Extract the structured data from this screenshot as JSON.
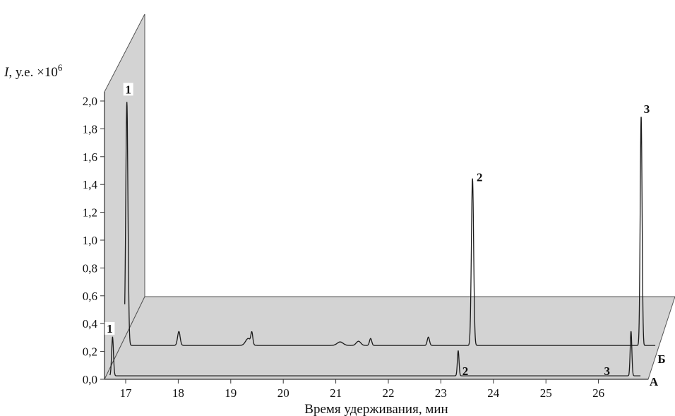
{
  "chart_data": {
    "type": "line",
    "style": "3d-waterfall",
    "ylabel": {
      "var": "I",
      "rest": ", у.е. ×10",
      "exp": "6"
    },
    "xlabel": "Время удерживания, мин",
    "xlim": [
      16.7,
      26.8
    ],
    "ylim": [
      0,
      2.0
    ],
    "x_ticks": [
      "17",
      "18",
      "19",
      "20",
      "21",
      "22",
      "23",
      "24",
      "25",
      "26"
    ],
    "y_ticks": [
      "0,0",
      "0,2",
      "0,4",
      "0,6",
      "0,8",
      "1,0",
      "1,2",
      "1,4",
      "1,6",
      "1,8",
      "2,0"
    ],
    "colors": {
      "trace": "#1a1a1a",
      "panel": "#d3d3d3",
      "panel_edge": "#555555"
    },
    "series": [
      {
        "name": "А",
        "peaks": [
          {
            "x": 16.75,
            "y": 0.28,
            "w": 0.025
          },
          {
            "x": 23.33,
            "y": 0.18,
            "w": 0.022
          },
          {
            "x": 26.62,
            "y": 0.32,
            "w": 0.022
          }
        ],
        "peak_labels": [
          {
            "text": "1",
            "x": 16.75
          },
          {
            "text": "2",
            "x": 23.33
          },
          {
            "text": "3",
            "x": 26.62
          }
        ]
      },
      {
        "name": "Б",
        "peaks": [
          {
            "x": 16.74,
            "y": 1.75,
            "w": 0.03
          },
          {
            "x": 17.73,
            "y": 0.1,
            "w": 0.035
          },
          {
            "x": 19.05,
            "y": 0.05,
            "w": 0.07
          },
          {
            "x": 19.12,
            "y": 0.08,
            "w": 0.025
          },
          {
            "x": 20.8,
            "y": 0.025,
            "w": 0.08
          },
          {
            "x": 21.15,
            "y": 0.03,
            "w": 0.06
          },
          {
            "x": 21.38,
            "y": 0.05,
            "w": 0.03
          },
          {
            "x": 22.48,
            "y": 0.06,
            "w": 0.03
          },
          {
            "x": 23.32,
            "y": 1.2,
            "w": 0.03
          },
          {
            "x": 26.53,
            "y": 1.65,
            "w": 0.025
          }
        ],
        "peak_labels": [
          {
            "text": "1",
            "x": 16.74
          },
          {
            "text": "2",
            "x": 23.32
          },
          {
            "text": "3",
            "x": 26.53
          }
        ]
      }
    ]
  }
}
